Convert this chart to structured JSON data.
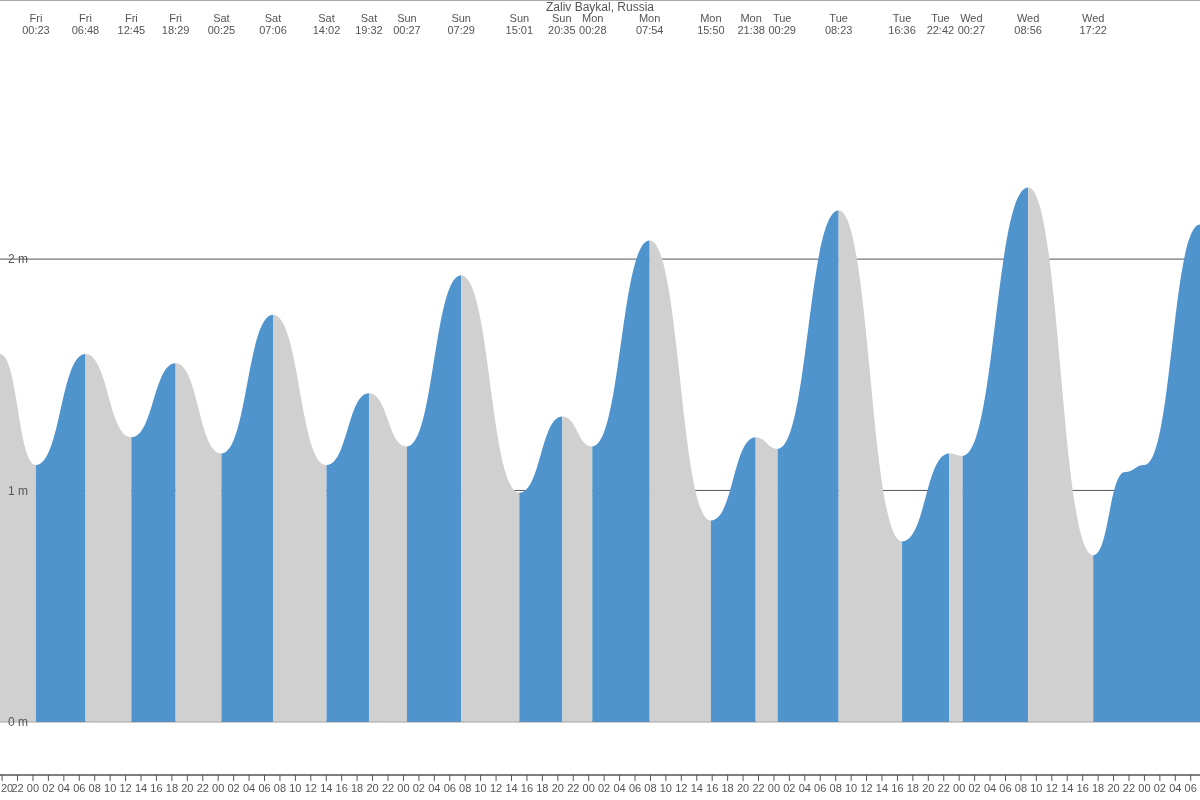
{
  "chart_data": {
    "type": "area",
    "title": "Zaliv Baykal, Russia",
    "xlim": [
      19.73,
      175.2
    ],
    "ylim": [
      -0.23,
      3.12
    ],
    "yticks": [
      {
        "value": 0,
        "label": "0 m"
      },
      {
        "value": 1,
        "label": "1 m"
      },
      {
        "value": 2,
        "label": "2 m"
      }
    ],
    "grid": "y",
    "xticks": [
      {
        "value": 20,
        "label": "20"
      },
      {
        "value": 22,
        "label": "22"
      },
      {
        "value": 24,
        "label": "00"
      },
      {
        "value": 26,
        "label": "02"
      },
      {
        "value": 28,
        "label": "04"
      },
      {
        "value": 30,
        "label": "06"
      },
      {
        "value": 32,
        "label": "08"
      },
      {
        "value": 34,
        "label": "10"
      },
      {
        "value": 36,
        "label": "12"
      },
      {
        "value": 38,
        "label": "14"
      },
      {
        "value": 40,
        "label": "16"
      },
      {
        "value": 42,
        "label": "18"
      },
      {
        "value": 44,
        "label": "20"
      },
      {
        "value": 46,
        "label": "22"
      },
      {
        "value": 48,
        "label": "00"
      },
      {
        "value": 50,
        "label": "02"
      },
      {
        "value": 52,
        "label": "04"
      },
      {
        "value": 54,
        "label": "06"
      },
      {
        "value": 56,
        "label": "08"
      },
      {
        "value": 58,
        "label": "10"
      },
      {
        "value": 60,
        "label": "12"
      },
      {
        "value": 62,
        "label": "14"
      },
      {
        "value": 64,
        "label": "16"
      },
      {
        "value": 66,
        "label": "18"
      },
      {
        "value": 68,
        "label": "20"
      },
      {
        "value": 70,
        "label": "22"
      },
      {
        "value": 72,
        "label": "00"
      },
      {
        "value": 74,
        "label": "02"
      },
      {
        "value": 76,
        "label": "04"
      },
      {
        "value": 78,
        "label": "06"
      },
      {
        "value": 80,
        "label": "08"
      },
      {
        "value": 82,
        "label": "10"
      },
      {
        "value": 84,
        "label": "12"
      },
      {
        "value": 86,
        "label": "14"
      },
      {
        "value": 88,
        "label": "16"
      },
      {
        "value": 90,
        "label": "18"
      },
      {
        "value": 92,
        "label": "20"
      },
      {
        "value": 94,
        "label": "22"
      },
      {
        "value": 96,
        "label": "00"
      },
      {
        "value": 98,
        "label": "02"
      },
      {
        "value": 100,
        "label": "04"
      },
      {
        "value": 102,
        "label": "06"
      },
      {
        "value": 104,
        "label": "08"
      },
      {
        "value": 106,
        "label": "10"
      },
      {
        "value": 108,
        "label": "12"
      },
      {
        "value": 110,
        "label": "14"
      },
      {
        "value": 112,
        "label": "16"
      },
      {
        "value": 114,
        "label": "18"
      },
      {
        "value": 116,
        "label": "20"
      },
      {
        "value": 118,
        "label": "22"
      },
      {
        "value": 120,
        "label": "00"
      },
      {
        "value": 122,
        "label": "02"
      },
      {
        "value": 124,
        "label": "04"
      },
      {
        "value": 126,
        "label": "06"
      },
      {
        "value": 128,
        "label": "08"
      },
      {
        "value": 130,
        "label": "10"
      },
      {
        "value": 132,
        "label": "12"
      },
      {
        "value": 134,
        "label": "14"
      },
      {
        "value": 136,
        "label": "16"
      },
      {
        "value": 138,
        "label": "18"
      },
      {
        "value": 140,
        "label": "20"
      },
      {
        "value": 142,
        "label": "22"
      },
      {
        "value": 144,
        "label": "00"
      },
      {
        "value": 146,
        "label": "02"
      },
      {
        "value": 148,
        "label": "04"
      },
      {
        "value": 150,
        "label": "06"
      },
      {
        "value": 152,
        "label": "08"
      },
      {
        "value": 154,
        "label": "10"
      },
      {
        "value": 156,
        "label": "12"
      },
      {
        "value": 158,
        "label": "14"
      },
      {
        "value": 160,
        "label": "16"
      },
      {
        "value": 162,
        "label": "18"
      },
      {
        "value": 164,
        "label": "20"
      },
      {
        "value": 166,
        "label": "22"
      },
      {
        "value": 168,
        "label": "00"
      },
      {
        "value": 170,
        "label": "02"
      },
      {
        "value": 172,
        "label": "04"
      },
      {
        "value": 174,
        "label": "06"
      }
    ],
    "annotations": [
      "Fri\n00:23",
      "Fri\n06:48",
      "Fri\n12:45",
      "Fri\n18:29",
      "Sat\n00:25",
      "Sat\n07:06",
      "Sat\n14:02",
      "Sat\n19:32",
      "Sun\n00:27",
      "Sun\n07:29",
      "Sun\n15:01",
      "Sun\n20:35",
      "Mon\n00:28",
      "Mon\n07:54",
      "Mon\n15:50",
      "Mon\n21:38",
      "Tue\n00:29",
      "Tue\n08:23",
      "Tue\n16:36",
      "Tue\n22:42",
      "Wed\n00:27",
      "Wed\n08:56",
      "Wed\n17:22"
    ],
    "series": [
      {
        "color": "#d0d0d0",
        "x": [
          19.73,
          24.383
        ],
        "values": [
          1.59,
          1.11
        ]
      },
      {
        "color": "#4f94cd",
        "x": [
          24.383,
          30.8
        ],
        "values": [
          1.11,
          1.59
        ]
      },
      {
        "color": "#d0d0d0",
        "x": [
          30.8,
          36.75
        ],
        "values": [
          1.59,
          1.23
        ]
      },
      {
        "color": "#4f94cd",
        "x": [
          36.75,
          42.483
        ],
        "values": [
          1.23,
          1.55
        ]
      },
      {
        "color": "#d0d0d0",
        "x": [
          42.483,
          48.417
        ],
        "values": [
          1.55,
          1.16
        ]
      },
      {
        "color": "#4f94cd",
        "x": [
          48.417,
          55.1
        ],
        "values": [
          1.16,
          1.76
        ]
      },
      {
        "color": "#d0d0d0",
        "x": [
          55.1,
          62.033
        ],
        "values": [
          1.76,
          1.11
        ]
      },
      {
        "color": "#4f94cd",
        "x": [
          62.033,
          67.533
        ],
        "values": [
          1.11,
          1.42
        ]
      },
      {
        "color": "#d0d0d0",
        "x": [
          67.533,
          72.45
        ],
        "values": [
          1.42,
          1.19
        ]
      },
      {
        "color": "#4f94cd",
        "x": [
          72.45,
          79.483
        ],
        "values": [
          1.19,
          1.93
        ]
      },
      {
        "color": "#d0d0d0",
        "x": [
          79.483,
          87.017
        ],
        "values": [
          1.93,
          0.99
        ]
      },
      {
        "color": "#4f94cd",
        "x": [
          87.017,
          92.583
        ],
        "values": [
          0.99,
          1.32
        ]
      },
      {
        "color": "#d0d0d0",
        "x": [
          92.583,
          96.467
        ],
        "values": [
          1.32,
          1.19
        ]
      },
      {
        "color": "#4f94cd",
        "x": [
          96.467,
          103.9
        ],
        "values": [
          1.19,
          2.08
        ]
      },
      {
        "color": "#d0d0d0",
        "x": [
          103.9,
          111.833
        ],
        "values": [
          2.08,
          0.87
        ]
      },
      {
        "color": "#4f94cd",
        "x": [
          111.833,
          117.633
        ],
        "values": [
          0.87,
          1.23
        ]
      },
      {
        "color": "#d0d0d0",
        "x": [
          117.633,
          120.483
        ],
        "values": [
          1.23,
          1.18
        ]
      },
      {
        "color": "#4f94cd",
        "x": [
          120.483,
          128.383
        ],
        "values": [
          1.18,
          2.21
        ]
      },
      {
        "color": "#d0d0d0",
        "x": [
          128.383,
          136.6
        ],
        "values": [
          2.21,
          0.78
        ]
      },
      {
        "color": "#4f94cd",
        "x": [
          136.6,
          142.7
        ],
        "values": [
          0.78,
          1.16
        ]
      },
      {
        "color": "#d0d0d0",
        "x": [
          142.7,
          144.45
        ],
        "values": [
          1.16,
          1.15
        ]
      },
      {
        "color": "#4f94cd",
        "x": [
          144.45,
          152.933
        ],
        "values": [
          1.15,
          2.31
        ]
      },
      {
        "color": "#d0d0d0",
        "x": [
          152.933,
          161.367
        ],
        "values": [
          2.31,
          0.72
        ]
      },
      {
        "color": "#4f94cd",
        "x": [
          161.367,
          165.5,
          168,
          175.2
        ],
        "values": [
          0.72,
          1.08,
          1.11,
          2.15
        ]
      }
    ]
  }
}
